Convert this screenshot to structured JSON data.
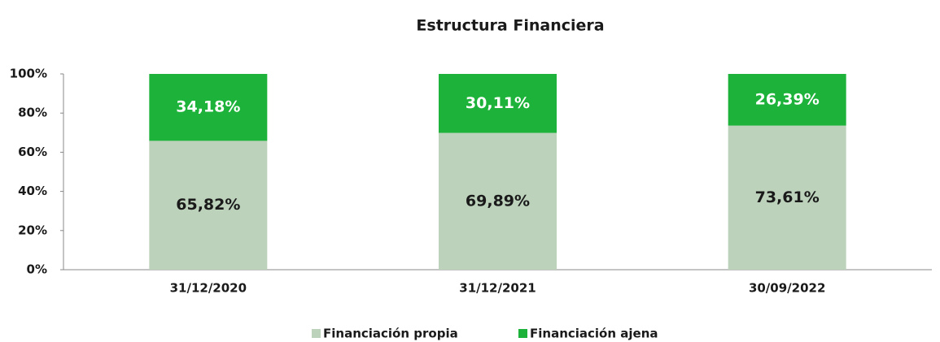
{
  "chart_data": {
    "type": "stacked_bar",
    "title": "Estructura Financiera",
    "categories": [
      "31/12/2020",
      "31/12/2021",
      "30/09/2022"
    ],
    "series": [
      {
        "name": "Financiación propia",
        "color": "#bcd2bb",
        "label_color": "#1a1a1a",
        "values": [
          65.82,
          69.89,
          73.61
        ],
        "value_labels": [
          "65,82%",
          "69,89%",
          "73,61%"
        ]
      },
      {
        "name": "Financiación ajena",
        "color": "#1db33a",
        "label_color": "#ffffff",
        "values": [
          34.18,
          30.11,
          26.39
        ],
        "value_labels": [
          "34,18%",
          "30,11%",
          "26,39%"
        ]
      }
    ],
    "ylim": [
      0,
      100
    ],
    "yticks": [
      {
        "value": 0,
        "label": "0%"
      },
      {
        "value": 20,
        "label": "20%"
      },
      {
        "value": 40,
        "label": "40%"
      },
      {
        "value": 60,
        "label": "60%"
      },
      {
        "value": 80,
        "label": "80%"
      },
      {
        "value": 100,
        "label": "100%"
      }
    ],
    "legend": "bottom"
  }
}
